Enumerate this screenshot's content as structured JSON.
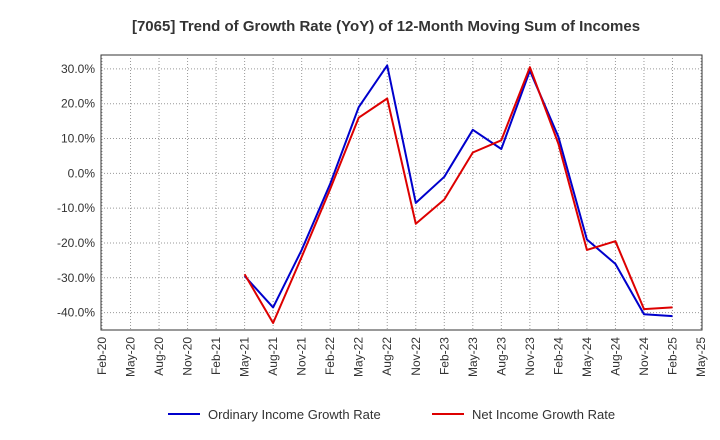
{
  "chart_data": {
    "type": "line",
    "title": "[7065]  Trend of Growth Rate (YoY) of 12-Month Moving Sum of Incomes",
    "xlabel": "",
    "ylabel": "",
    "ylim": [
      -45,
      34
    ],
    "y_ticks": [
      30,
      20,
      10,
      0,
      -10,
      -20,
      -30,
      -40
    ],
    "y_tick_labels": [
      "30.0%",
      "20.0%",
      "10.0%",
      "0.0%",
      "-10.0%",
      "-20.0%",
      "-30.0%",
      "-40.0%"
    ],
    "x_tick_labels": [
      "Feb-20",
      "May-20",
      "Aug-20",
      "Nov-20",
      "Feb-21",
      "May-21",
      "Aug-21",
      "Nov-21",
      "Feb-22",
      "May-22",
      "Aug-22",
      "Nov-22",
      "Feb-23",
      "May-23",
      "Aug-23",
      "Nov-23",
      "Feb-24",
      "May-24",
      "Aug-24",
      "Nov-24",
      "Feb-25",
      "May-25"
    ],
    "grid": true,
    "legend_position": "bottom",
    "x": [
      "May-21",
      "Aug-21",
      "Nov-21",
      "Feb-22",
      "May-22",
      "Aug-22",
      "Nov-22",
      "Feb-23",
      "May-23",
      "Aug-23",
      "Nov-23",
      "Feb-24",
      "May-24",
      "Aug-24",
      "Nov-24",
      "Feb-25"
    ],
    "series": [
      {
        "name": "Ordinary Income Growth Rate",
        "color": "#0000cc",
        "values": [
          -29.5,
          -38.5,
          -22.0,
          -3.0,
          19.0,
          31.0,
          -8.5,
          -1.0,
          12.5,
          7.0,
          29.5,
          10.5,
          -19.0,
          -26.0,
          -40.5,
          -41.0
        ]
      },
      {
        "name": "Net Income Growth Rate",
        "color": "#dd0000",
        "values": [
          -29.0,
          -43.0,
          -24.0,
          -4.5,
          16.0,
          21.5,
          -14.5,
          -7.5,
          6.0,
          9.5,
          30.5,
          8.5,
          -22.0,
          -19.5,
          -39.0,
          -38.5
        ]
      }
    ]
  }
}
